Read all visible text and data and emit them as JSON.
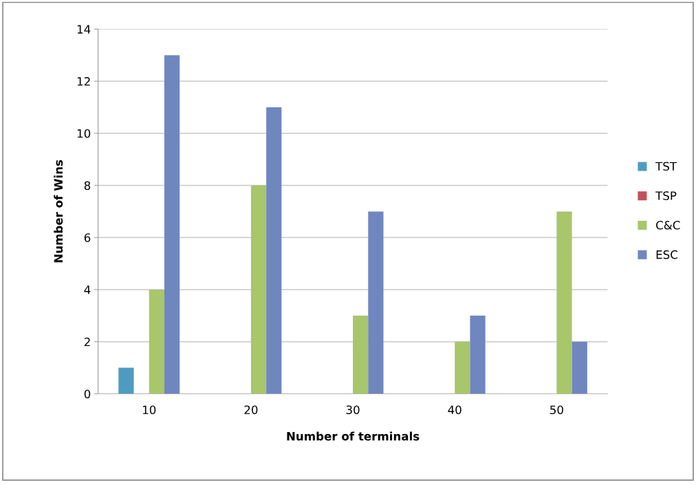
{
  "chart_data": {
    "type": "bar",
    "xlabel": "Number of terminals",
    "ylabel": "Number of Wins",
    "categories": [
      "10",
      "20",
      "30",
      "40",
      "50"
    ],
    "series": [
      {
        "name": "TST",
        "color": "#4f9bc0",
        "values": [
          1,
          0,
          0,
          0,
          0
        ]
      },
      {
        "name": "TSP",
        "color": "#c0505a",
        "values": [
          0,
          0,
          0,
          0,
          0
        ]
      },
      {
        "name": "C&C",
        "color": "#a8c66a",
        "values": [
          4,
          8,
          3,
          2,
          7
        ]
      },
      {
        "name": "ESC",
        "color": "#6f86bf",
        "values": [
          13,
          11,
          7,
          3,
          2
        ]
      }
    ],
    "ylim": [
      0,
      14
    ],
    "yticks": [
      0,
      2,
      4,
      6,
      8,
      10,
      12,
      14
    ],
    "grid": "y",
    "legend": "right"
  }
}
